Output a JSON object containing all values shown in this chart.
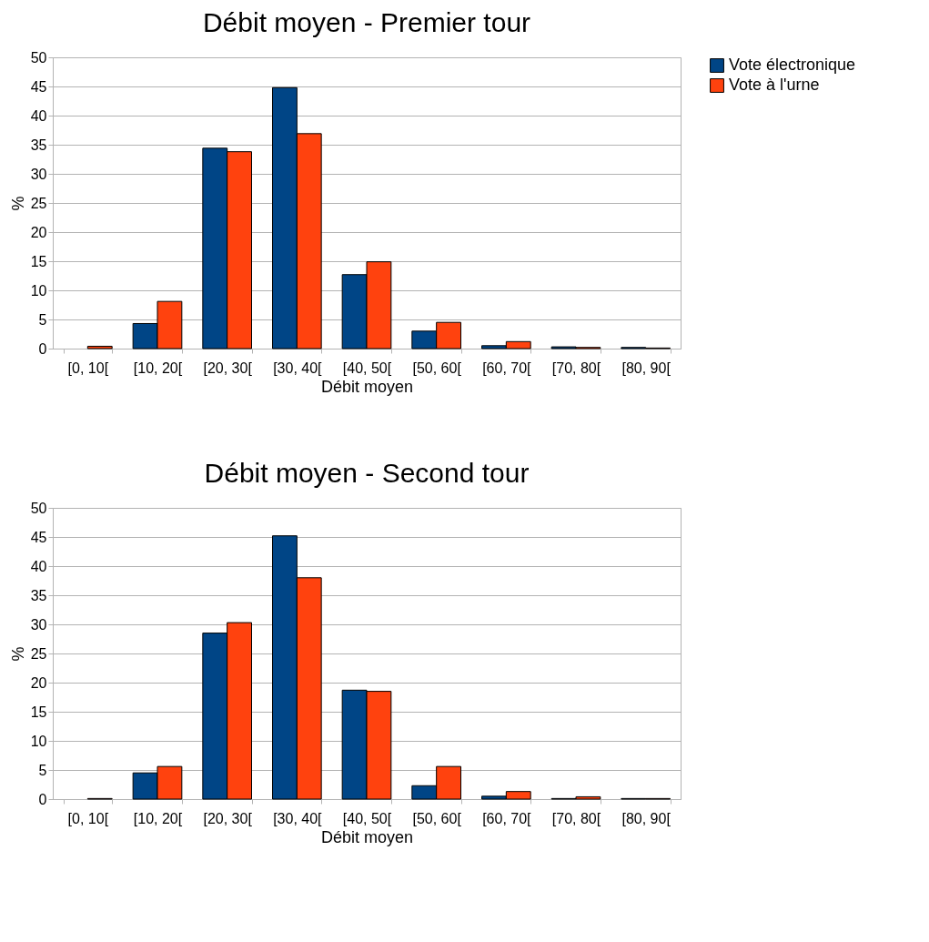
{
  "chart_data": [
    {
      "type": "bar",
      "title": "Débit moyen - Premier tour",
      "xlabel": "Débit moyen",
      "ylabel": "%",
      "categories": [
        "[0, 10[",
        "[10, 20[",
        "[20, 30[",
        "[30, 40[",
        "[40, 50[",
        "[50, 60[",
        "[60, 70[",
        "[70, 80[",
        "[80, 90["
      ],
      "series": [
        {
          "name": "Vote électronique",
          "color": "#004586",
          "values": [
            null,
            4.3,
            34.4,
            44.8,
            12.7,
            3,
            0.5,
            0.3,
            0.2
          ]
        },
        {
          "name": "Vote à l'urne",
          "color": "#ff420e",
          "values": [
            0.4,
            8.1,
            33.8,
            36.9,
            14.9,
            4.5,
            1.2,
            0.2,
            0.1
          ]
        }
      ],
      "ylim": [
        0,
        50
      ],
      "yticks": [
        0,
        5,
        10,
        15,
        20,
        25,
        30,
        35,
        40,
        45,
        50
      ],
      "grid": "y",
      "legend": "right"
    },
    {
      "type": "bar",
      "title": "Débit moyen - Second tour",
      "xlabel": "Débit moyen",
      "ylabel": "%",
      "categories": [
        "[0, 10[",
        "[10, 20[",
        "[20, 30[",
        "[30, 40[",
        "[40, 50[",
        "[50, 60[",
        "[60, 70[",
        "[70, 80[",
        "[80, 90["
      ],
      "series": [
        {
          "name": "Vote électronique",
          "color": "#004586",
          "values": [
            null,
            4.5,
            28.5,
            45.2,
            18.7,
            2.3,
            0.5,
            0.1,
            0.1
          ]
        },
        {
          "name": "Vote à l'urne",
          "color": "#ff420e",
          "values": [
            0.1,
            5.6,
            30.3,
            38.0,
            18.5,
            5.6,
            1.3,
            0.4,
            0.1
          ]
        }
      ],
      "ylim": [
        0,
        50
      ],
      "yticks": [
        0,
        5,
        10,
        15,
        20,
        25,
        30,
        35,
        40,
        45,
        50
      ],
      "grid": "y",
      "legend": "right"
    }
  ]
}
